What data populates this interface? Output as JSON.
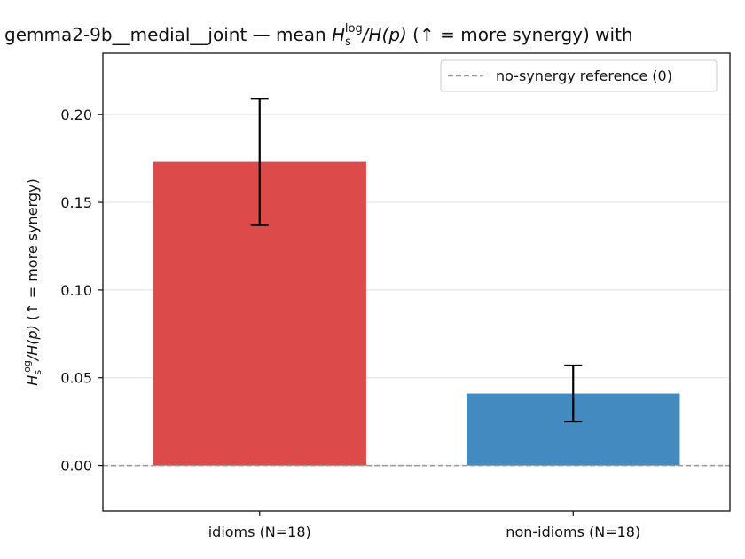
{
  "chart_data": {
    "type": "bar",
    "title": {
      "prefix": "gemma2-9b__medial__joint — mean ",
      "metric_H": "H",
      "metric_sub": "s",
      "metric_sup": "log",
      "metric_rest": "/H(p)",
      "suffix": "  (↑ = more synergy) with"
    },
    "ylabel": {
      "metric_H": "H",
      "metric_sub": "s",
      "metric_sup": "log",
      "metric_rest": "/H(p)",
      "suffix": "  (↑ = more synergy)"
    },
    "xlabel": "",
    "categories": [
      "idioms (N=18)",
      "non-idioms (N=18)"
    ],
    "values": [
      0.173,
      0.041
    ],
    "error_low": [
      0.137,
      0.025
    ],
    "error_high": [
      0.209,
      0.057
    ],
    "colors": [
      "#dc4a4a",
      "#428ac0"
    ],
    "ylim": [
      -0.026,
      0.235
    ],
    "yticks": [
      0.0,
      0.05,
      0.1,
      0.15,
      0.2
    ],
    "ytick_labels": [
      "0.00",
      "0.05",
      "0.10",
      "0.15",
      "0.20"
    ],
    "reference_line": {
      "value": 0,
      "label": "no-synergy reference (0)",
      "color": "#999999"
    },
    "legend_position": "top-right",
    "grid": "y"
  }
}
